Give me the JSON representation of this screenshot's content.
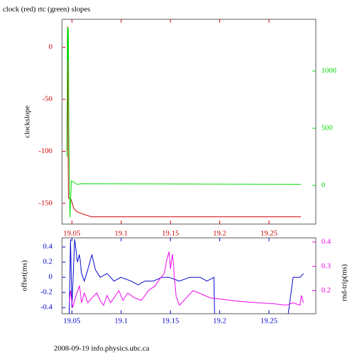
{
  "chart_data": [
    {
      "type": "line",
      "title": "clock (red) rtc (green) slopes",
      "ylabel": "clockslope",
      "xlim": [
        19.04,
        19.2975
      ],
      "xticks": [
        19.05,
        19.1,
        19.15,
        19.2,
        19.25
      ],
      "ylim": [
        -170,
        27
      ],
      "yticks": [
        -150,
        -100,
        -50,
        0
      ],
      "y2lim": [
        -337,
        1452
      ],
      "y2ticks": [
        0,
        500,
        1000
      ],
      "axis_colors": {
        "x": "#cc0000",
        "y": "#cc0000",
        "y2": "#00dd00"
      },
      "series": [
        {
          "color": "#cc0000",
          "x": [
            19.045,
            19.0455,
            19.046,
            19.0465,
            19.049,
            19.052,
            19.055,
            19.06,
            19.07,
            19.2825
          ],
          "values": [
            -100,
            20,
            -60,
            -145,
            -146,
            -155,
            -158,
            -160,
            -163,
            -163
          ]
        },
        {
          "color": "#00dd00",
          "axis": "y2",
          "x": [
            19.045,
            19.0455,
            19.046,
            19.0465,
            19.047,
            19.048,
            19.0495,
            19.052,
            19.055,
            19.06,
            19.2825
          ],
          "values": [
            250,
            1380,
            1100,
            1380,
            400,
            -280,
            40,
            30,
            10,
            15,
            10
          ]
        }
      ]
    },
    {
      "type": "line",
      "ylabel": "offset(ms)",
      "y2label": "rnd-trip(ms)",
      "xlim": [
        19.04,
        19.2975
      ],
      "xticks": [
        19.05,
        19.1,
        19.15,
        19.2,
        19.25
      ],
      "ylim": [
        -0.48,
        0.52
      ],
      "yticks": [
        -0.4,
        -0.2,
        0,
        0.2,
        0.4
      ],
      "y2lim": [
        0.105,
        0.417
      ],
      "y2ticks": [
        0.2,
        0.3,
        0.4
      ],
      "axis_colors": {
        "x": "#0000cc",
        "y": "#0000cc",
        "y2": "#ee00ee"
      },
      "series": [
        {
          "color": "#0000cc",
          "x": [
            19.0472,
            19.0486,
            19.05,
            19.0528,
            19.0556,
            19.0577,
            19.0598,
            19.0626,
            19.0661,
            19.0703,
            19.0738,
            19.0787,
            19.0857,
            19.0927,
            19.0997,
            19.1101,
            19.1171,
            19.1241,
            19.1325,
            19.1416,
            19.1486,
            19.1591,
            19.1696,
            19.1801,
            19.1871,
            19.1941,
            19.1948,
            19.23,
            19.2696,
            19.2745,
            19.2815,
            19.285
          ],
          "values": [
            -0.48,
            0.5,
            -0.4,
            0.5,
            0.2,
            0.3,
            0.05,
            -0.05,
            0.1,
            0.3,
            0.1,
            0.0,
            0.05,
            -0.05,
            0.0,
            -0.05,
            -0.1,
            -0.05,
            -0.05,
            0.0,
            0.0,
            -0.05,
            0.0,
            0.0,
            -0.05,
            0.0,
            -0.48,
            null,
            -0.48,
            0.0,
            0.0,
            0.05
          ]
        },
        {
          "color": "#ee00ee",
          "axis": "y2",
          "x": [
            19.0472,
            19.0486,
            19.0507,
            19.0542,
            19.0577,
            19.0598,
            19.0626,
            19.0661,
            19.0703,
            19.0752,
            19.0787,
            19.0822,
            19.0857,
            19.0892,
            19.0927,
            19.0976,
            19.1017,
            19.1066,
            19.1136,
            19.1206,
            19.1276,
            19.1346,
            19.1395,
            19.1437,
            19.1465,
            19.1486,
            19.15,
            19.1521,
            19.1556,
            19.1591,
            19.1731,
            19.1906,
            19.222,
            19.257,
            19.2675,
            19.2745,
            19.2815,
            19.2829,
            19.285
          ],
          "values": [
            0.15,
            0.2,
            0.13,
            0.18,
            0.22,
            0.15,
            0.19,
            0.15,
            0.17,
            0.19,
            0.16,
            0.14,
            0.18,
            0.15,
            0.17,
            0.2,
            0.16,
            0.19,
            0.17,
            0.16,
            0.2,
            0.22,
            0.25,
            0.27,
            0.33,
            0.36,
            0.29,
            0.35,
            0.18,
            0.14,
            0.2,
            0.17,
            0.155,
            0.145,
            0.14,
            0.15,
            0.14,
            0.18,
            0.15
          ]
        }
      ]
    }
  ],
  "footer": "2008-09-19 info.physics.ubc.ca"
}
